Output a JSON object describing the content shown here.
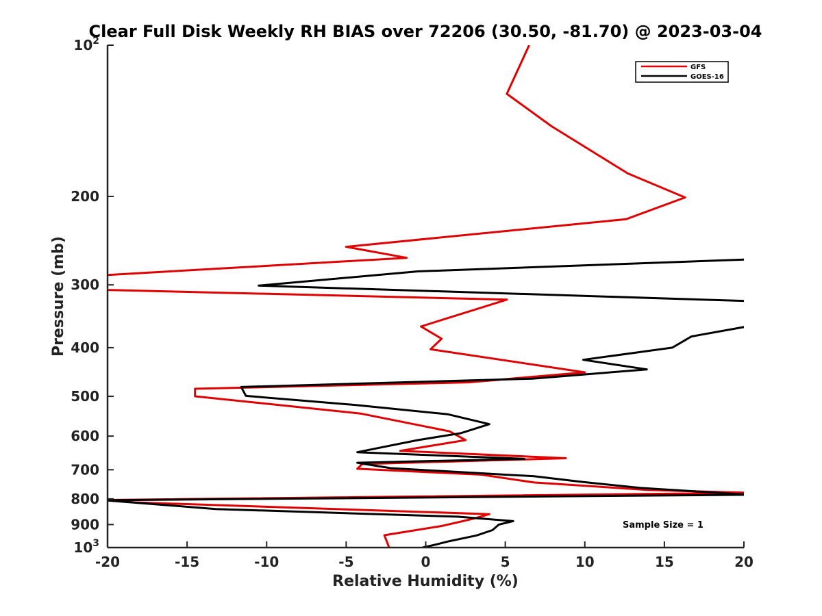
{
  "chart_data": {
    "type": "line",
    "title": "Clear Full Disk Weekly RH BIAS over 72206 (30.50, -81.70) @ 2023-03-04",
    "xlabel": "Relative Humidity (%)",
    "ylabel": "Pressure (mb)",
    "xlim": [
      -20,
      20
    ],
    "ylim": [
      100,
      1000
    ],
    "y_scale": "log",
    "y_reversed": true,
    "x_ticks": [
      "-20",
      "-15",
      "-10",
      "-5",
      "0",
      "5",
      "10",
      "15",
      "20"
    ],
    "y_ticks": [
      {
        "value": 100,
        "base": "10",
        "exp": "2"
      },
      {
        "value": 200,
        "label": "200"
      },
      {
        "value": 300,
        "label": "300"
      },
      {
        "value": 400,
        "label": "400"
      },
      {
        "value": 500,
        "label": "500"
      },
      {
        "value": 600,
        "label": "600"
      },
      {
        "value": 700,
        "label": "700"
      },
      {
        "value": 800,
        "label": "800"
      },
      {
        "value": 900,
        "label": "900"
      },
      {
        "value": 1000,
        "base": "10",
        "exp": "3"
      }
    ],
    "grid": false,
    "legend_position": "top-right",
    "annotation": "Sample Size = 1",
    "series": [
      {
        "name": "GFS",
        "color": "#e00000",
        "points": [
          [
            6.5,
            100
          ],
          [
            5.1,
            125
          ],
          [
            7.9,
            145
          ],
          [
            12.7,
            180
          ],
          [
            16.3,
            201
          ],
          [
            12.6,
            222
          ],
          [
            -5.0,
            252
          ],
          [
            -1.2,
            265
          ],
          [
            -20.3,
            287
          ],
          [
            -20.0,
            307
          ],
          [
            5.1,
            321
          ],
          [
            -0.3,
            363
          ],
          [
            1.0,
            384
          ],
          [
            0.3,
            403
          ],
          [
            10.0,
            448
          ],
          [
            2.7,
            469
          ],
          [
            -14.5,
            483
          ],
          [
            -14.5,
            500
          ],
          [
            -4.1,
            541
          ],
          [
            1.5,
            587
          ],
          [
            2.5,
            611
          ],
          [
            -1.6,
            642
          ],
          [
            8.8,
            664
          ],
          [
            -4.0,
            682
          ],
          [
            -4.3,
            697
          ],
          [
            3.5,
            716
          ],
          [
            6.8,
            742
          ],
          [
            14.0,
            768
          ],
          [
            20.3,
            778
          ],
          [
            -20.0,
            804
          ],
          [
            -18.3,
            813
          ],
          [
            4.0,
            858
          ],
          [
            3.0,
            876
          ],
          [
            1.0,
            906
          ],
          [
            -2.6,
            945
          ],
          [
            -2.3,
            1000
          ]
        ]
      },
      {
        "name": "GOES-16",
        "color": "#000000",
        "points": [
          [
            20.2,
            267
          ],
          [
            -0.5,
            282
          ],
          [
            -10.5,
            301
          ],
          [
            20.2,
            323
          ],
          [
            20.2,
            363
          ],
          [
            16.7,
            380
          ],
          [
            15.5,
            400
          ],
          [
            9.9,
            423
          ],
          [
            13.9,
            442
          ],
          [
            6.7,
            461
          ],
          [
            -11.6,
            479
          ],
          [
            -11.3,
            499
          ],
          [
            -4.5,
            520
          ],
          [
            1.4,
            543
          ],
          [
            4.0,
            568
          ],
          [
            2.2,
            592
          ],
          [
            -0.5,
            611
          ],
          [
            -4.3,
            646
          ],
          [
            6.2,
            666
          ],
          [
            -4.3,
            678
          ],
          [
            -2.2,
            695
          ],
          [
            5.0,
            716
          ],
          [
            6.8,
            721
          ],
          [
            9.8,
            740
          ],
          [
            13.5,
            761
          ],
          [
            20.3,
            785
          ],
          [
            -20.2,
            805
          ],
          [
            -13.2,
            838
          ],
          [
            2.0,
            868
          ],
          [
            5.5,
            886
          ],
          [
            4.6,
            900
          ],
          [
            4.2,
            923
          ],
          [
            3.2,
            946
          ],
          [
            1.5,
            971
          ],
          [
            0.6,
            987
          ],
          [
            -0.2,
            1000
          ]
        ]
      }
    ]
  }
}
